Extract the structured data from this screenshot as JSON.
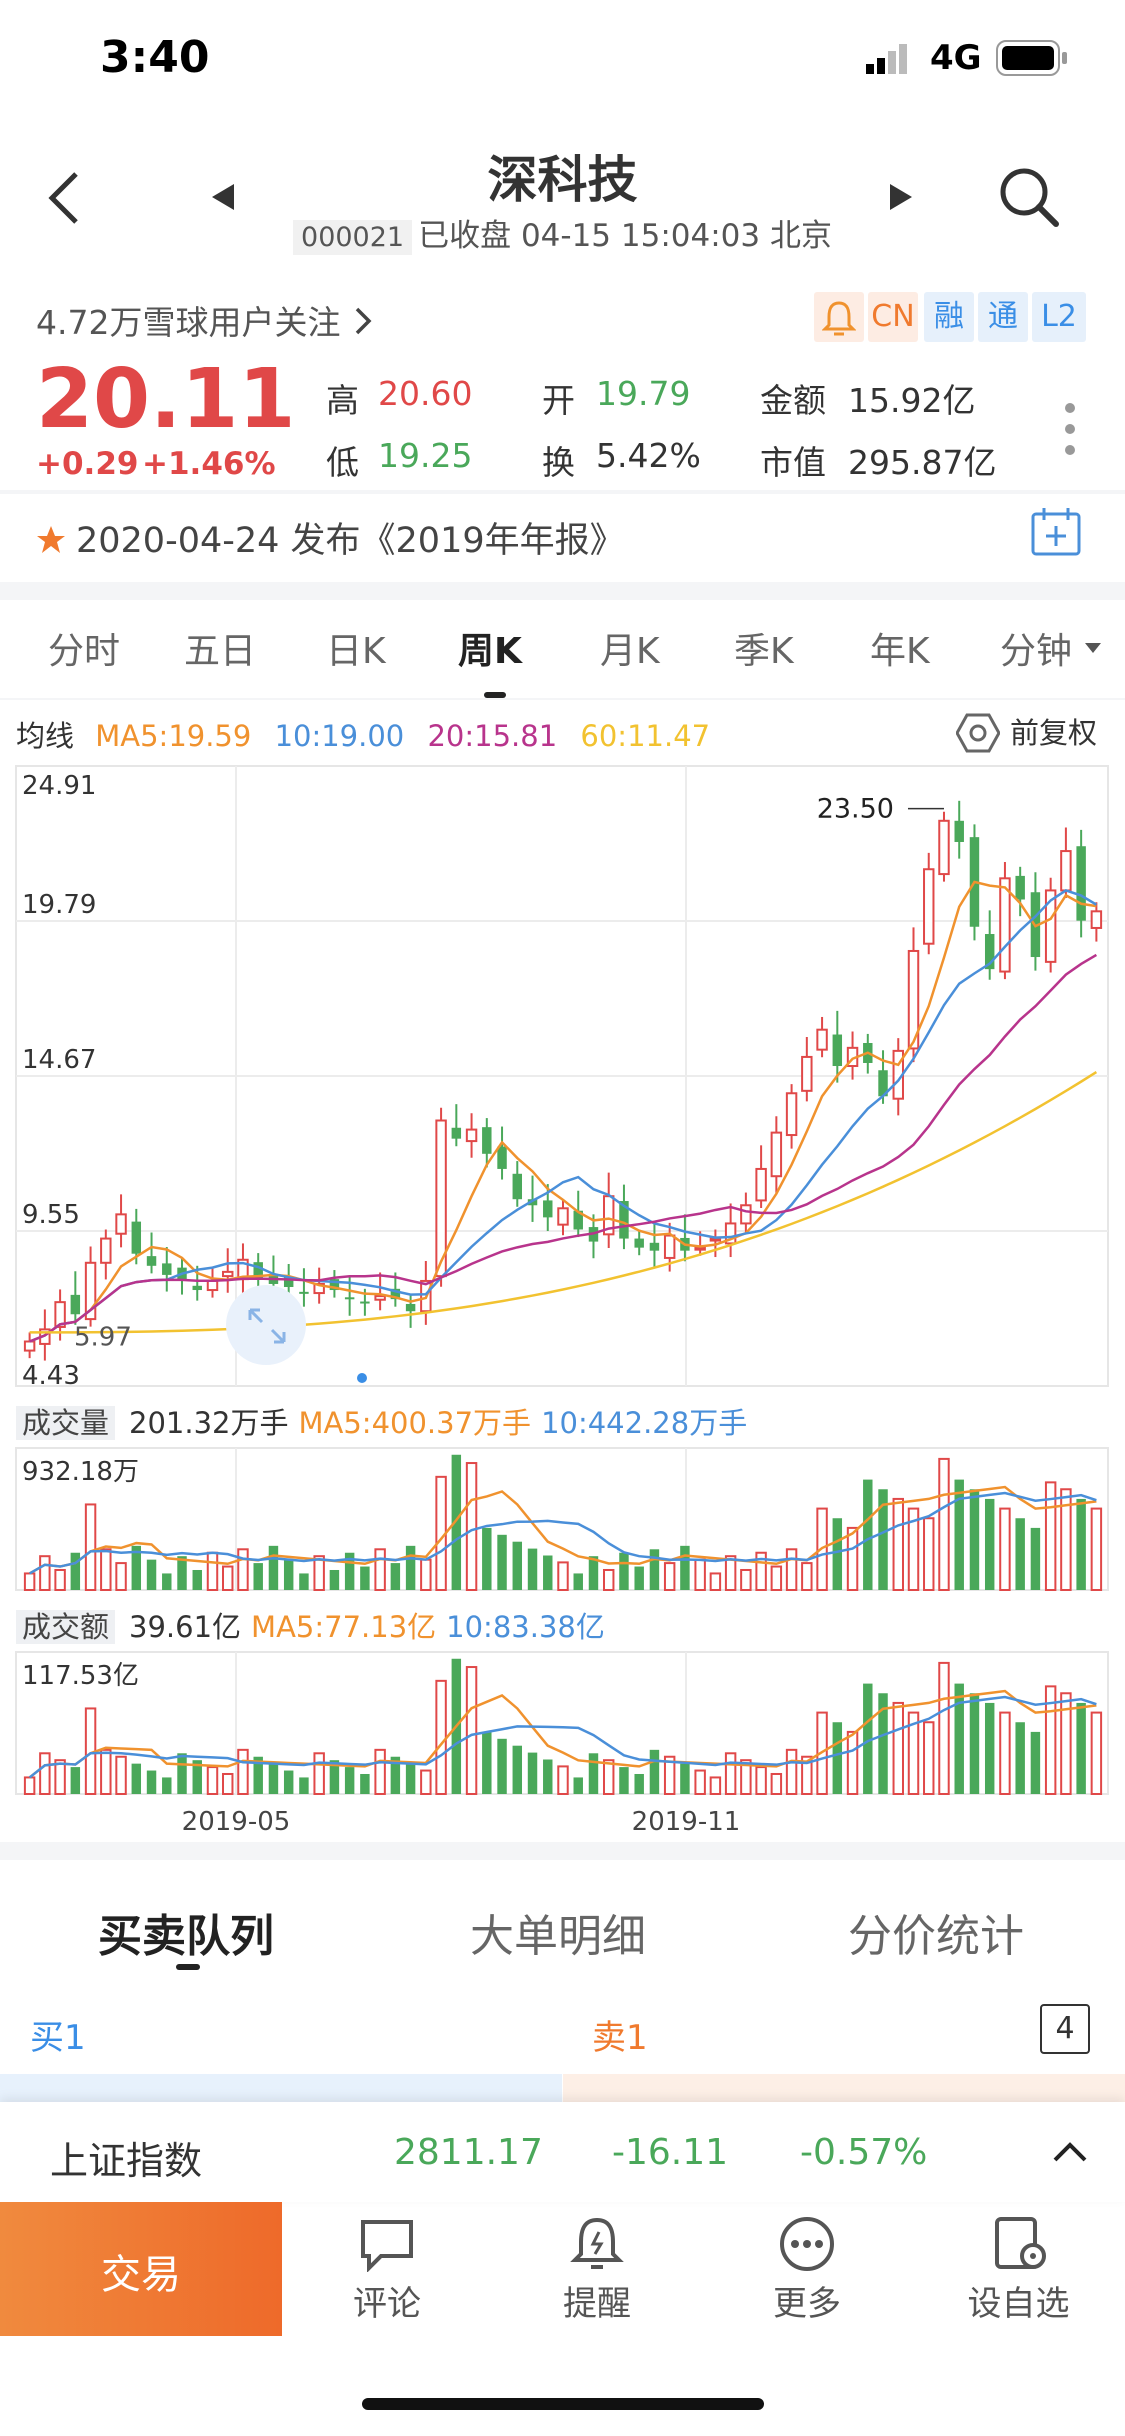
{
  "status_bar": {
    "time": "3:40",
    "network": "4G"
  },
  "header": {
    "title": "深科技",
    "code": "000021",
    "status": "已收盘 04-15 15:04:03 北京"
  },
  "followers": "4.72万雪球用户关注",
  "badges": [
    "CN",
    "融",
    "通",
    "L2"
  ],
  "quote": {
    "price": "20.11",
    "change": "+0.29",
    "change_pct": "+1.46%",
    "high_label": "高",
    "high": "20.60",
    "low_label": "低",
    "low": "19.25",
    "open_label": "开",
    "open": "19.79",
    "turnover_label": "换",
    "turnover": "5.42%",
    "amount_label": "金额",
    "amount": "15.92亿",
    "mktcap_label": "市值",
    "mktcap": "295.87亿"
  },
  "announcement": "2020-04-24 发布《2019年年报》",
  "period_tabs": [
    "分时",
    "五日",
    "日K",
    "周K",
    "月K",
    "季K",
    "年K",
    "分钟"
  ],
  "ma_legend": {
    "label": "均线",
    "ma5": "MA5:19.59",
    "ma10": "10:19.00",
    "ma20": "20:15.81",
    "ma60": "60:11.47",
    "adjust": "前复权"
  },
  "price_axis": [
    "24.91",
    "19.79",
    "14.67",
    "9.55",
    "4.43"
  ],
  "price_annotations": {
    "high": "23.50",
    "low": "5.97"
  },
  "volume_legend": {
    "label": "成交量",
    "value": "201.32万手",
    "ma5": "MA5:400.37万手",
    "ma10": "10:442.28万手",
    "max": "932.18万"
  },
  "amount_legend": {
    "label": "成交额",
    "value": "39.61亿",
    "ma5": "MA5:77.13亿",
    "ma10": "10:83.38亿",
    "max": "117.53亿"
  },
  "date_labels": [
    "2019-05",
    "2019-11"
  ],
  "queue_tabs": [
    "买卖队列",
    "大单明细",
    "分价统计"
  ],
  "queue": {
    "buy": "买1",
    "sell": "卖1",
    "depth": "4"
  },
  "index_bar": {
    "name": "上证指数",
    "value": "2811.17",
    "change": "-16.11",
    "pct": "-0.57%"
  },
  "bottom_nav": {
    "trade": "交易",
    "items": [
      "评论",
      "提醒",
      "更多",
      "设自选"
    ]
  },
  "colors": {
    "up": "#e04848",
    "down": "#4aa85a",
    "ma5": "#f0922e",
    "ma10": "#4a8fd9",
    "ma20": "#b8348c",
    "ma60": "#f2c230",
    "accent": "#3a8ee6"
  }
}
